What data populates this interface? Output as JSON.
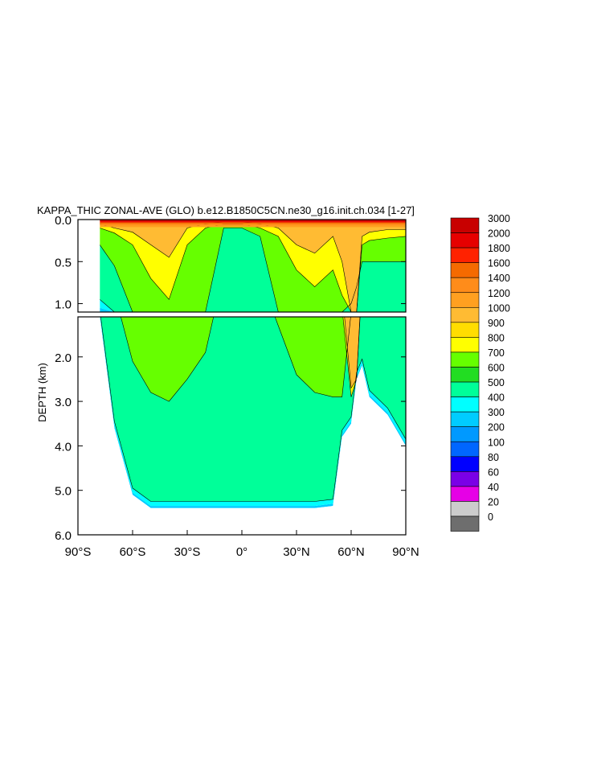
{
  "chart_data": {
    "type": "heatmap",
    "title": "KAPPA_THIC ZONAL-AVE (GLO) b.e12.B1850C5CN.ne30_g16.init.ch.034 [1-27]",
    "ylabel": "DEPTH (km)",
    "xlabel": "",
    "x_ticks": [
      "90°S",
      "60°S",
      "30°S",
      "0°",
      "30°N",
      "60°N",
      "90°N"
    ],
    "x_tick_values": [
      -90,
      -60,
      -30,
      0,
      30,
      60,
      90
    ],
    "xlim": [
      -90,
      90
    ],
    "upper_panel": {
      "ylim": [
        0,
        1.1
      ],
      "y_ticks": [
        "0.0",
        "0.5",
        "1.0"
      ],
      "y_tick_values": [
        0,
        0.5,
        1.0
      ]
    },
    "lower_panel": {
      "ylim": [
        1.1,
        6.0
      ],
      "y_ticks": [
        "2.0",
        "3.0",
        "4.0",
        "5.0",
        "6.0"
      ],
      "y_tick_values": [
        2,
        3,
        4,
        5,
        6
      ]
    },
    "legend_placement": "right",
    "levels": [
      "3000",
      "2000",
      "1800",
      "1600",
      "1400",
      "1200",
      "1000",
      "900",
      "800",
      "700",
      "600",
      "500",
      "400",
      "300",
      "200",
      "100",
      "80",
      "60",
      "40",
      "20",
      "0"
    ],
    "level_colors": [
      "#c80000",
      "#e60000",
      "#ff2200",
      "#f56a00",
      "#ff8c1a",
      "#ffa020",
      "#ffbb33",
      "#ffdd00",
      "#ffff00",
      "#66ff00",
      "#22dd22",
      "#00ff99",
      "#00ffff",
      "#00ccff",
      "#0099ff",
      "#0066ff",
      "#0000ff",
      "#7a00e6",
      "#e600e6",
      "#cccccc",
      "#6e6e6e"
    ],
    "zonal_profile": {
      "latitude": [
        -78,
        -70,
        -60,
        -50,
        -40,
        -30,
        -20,
        -10,
        0,
        10,
        20,
        30,
        40,
        50,
        55,
        60,
        63,
        66,
        70,
        80,
        90
      ],
      "bottom_depth_km": [
        1.1,
        3.6,
        5.1,
        5.4,
        5.4,
        5.4,
        5.4,
        5.4,
        5.4,
        5.4,
        5.4,
        5.4,
        5.4,
        5.35,
        3.8,
        3.5,
        2.5,
        2.2,
        2.9,
        3.3,
        4.0
      ],
      "depth_700_km": [
        0.3,
        0.55,
        2.1,
        2.8,
        3.0,
        2.5,
        1.9,
        0.1,
        0.1,
        0.2,
        1.3,
        2.4,
        2.8,
        2.9,
        2.9,
        1.0,
        0.8,
        0.5,
        0.5,
        0.5,
        0.5
      ],
      "depth_800_km": [
        0.1,
        0.16,
        0.3,
        0.7,
        0.95,
        0.3,
        0.1,
        0.05,
        0.05,
        0.1,
        0.2,
        0.6,
        0.8,
        0.6,
        0.9,
        2.9,
        2.8,
        0.3,
        0.25,
        0.22,
        0.2
      ],
      "depth_900_km": [
        0.05,
        0.1,
        0.15,
        0.3,
        0.45,
        0.1,
        0.05,
        0.03,
        0.03,
        0.05,
        0.1,
        0.3,
        0.4,
        0.2,
        0.5,
        2.7,
        2.6,
        0.2,
        0.15,
        0.12,
        0.12
      ]
    }
  }
}
